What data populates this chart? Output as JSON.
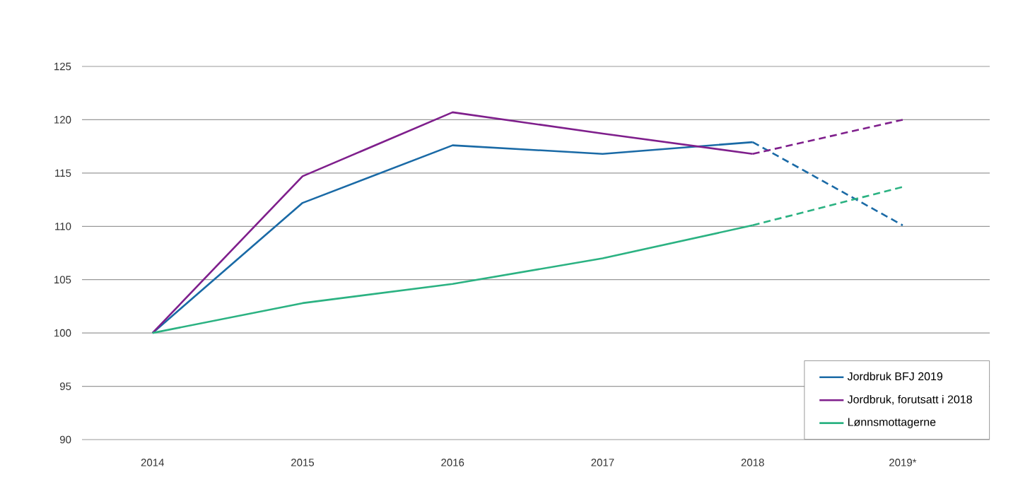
{
  "chart_data": {
    "type": "line",
    "categories": [
      "2014",
      "2015",
      "2016",
      "2017",
      "2018",
      "2019*"
    ],
    "ylim": [
      90,
      125
    ],
    "yticks": [
      90,
      95,
      100,
      105,
      110,
      115,
      120,
      125
    ],
    "grid": "y",
    "legend": "bottom right",
    "marker": "none",
    "series": [
      {
        "name": "Jordbruk BFJ 2019",
        "color": "#1a6aa6",
        "line_style": "solid",
        "values": [
          100,
          112.2,
          117.6,
          116.8,
          117.9,
          null
        ]
      },
      {
        "name": "Jordbruk, forutsatt i 2018",
        "color": "#7f1f8c",
        "line_style": "solid",
        "values": [
          100,
          114.7,
          120.7,
          118.7,
          116.8,
          null
        ]
      },
      {
        "name": "Lønnsmottagerne",
        "color": "#2bb282",
        "line_style": "solid",
        "values": [
          100,
          102.8,
          104.6,
          107.0,
          110.1,
          null
        ]
      },
      {
        "color": "#1a6aa6",
        "line_style": "dashed",
        "values": [
          null,
          null,
          null,
          null,
          117.9,
          110.1
        ]
      },
      {
        "color": "#7f1f8c",
        "line_style": "dashed",
        "values": [
          null,
          null,
          null,
          null,
          116.8,
          120.0
        ]
      },
      {
        "color": "#2bb282",
        "line_style": "dashed",
        "values": [
          null,
          null,
          null,
          null,
          110.1,
          113.7
        ]
      }
    ]
  }
}
